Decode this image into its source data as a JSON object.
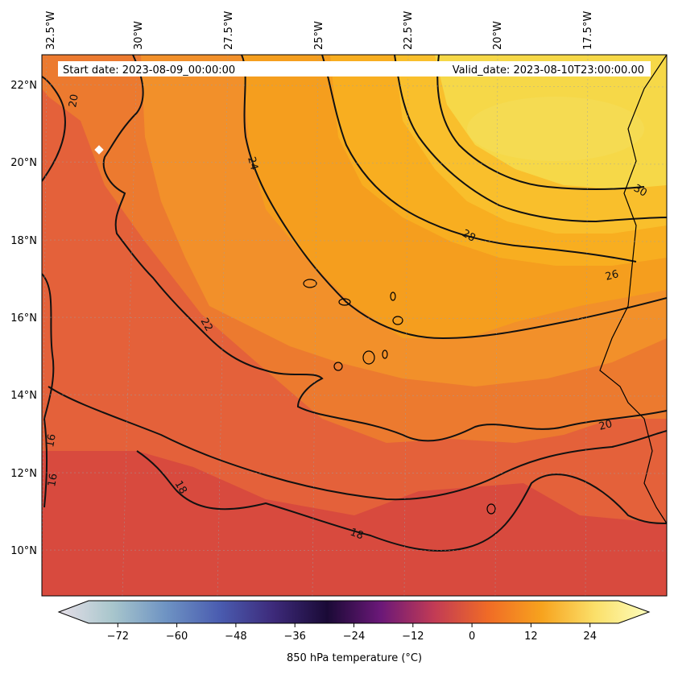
{
  "map": {
    "lon_ticks": [
      "32.5°W",
      "30°W",
      "27.5°W",
      "25°W",
      "22.5°W",
      "20°W",
      "17.5°W"
    ],
    "lat_ticks": [
      "22°N",
      "20°N",
      "18°N",
      "16°N",
      "14°N",
      "12°N",
      "10°N"
    ],
    "start_date": "Start date: 2023-08-09_00:00:00",
    "valid_date": "Valid_date: 2023-08-10T23:00:00.00",
    "contour_labels": [
      "24",
      "22",
      "20",
      "18",
      "16",
      "16",
      "18",
      "20",
      "26",
      "28",
      "30"
    ],
    "colors": {
      "orange": "#f29a1f",
      "red_orange": "#e06a34",
      "red": "#d84a3e",
      "yellow": "#f4dc56",
      "contour": "#111111",
      "coastline": "#000000",
      "marker": "#ffffff"
    }
  },
  "colorbar": {
    "ticks": [
      "−72",
      "−60",
      "−48",
      "−36",
      "−24",
      "−12",
      "0",
      "12",
      "24"
    ],
    "tick_values": [
      -72,
      -60,
      -48,
      -36,
      -24,
      -12,
      0,
      12,
      24
    ],
    "range": [
      -84,
      36
    ],
    "title": "850 hPa temperature (°C)",
    "colors": [
      "#e6dfe8",
      "#a8c6cc",
      "#6e93c3",
      "#4a5cb0",
      "#3d2a7a",
      "#1a0a36",
      "#6b1878",
      "#c23b55",
      "#f06b26",
      "#f7a31e",
      "#fbe06a",
      "#fcfdbd"
    ]
  }
}
